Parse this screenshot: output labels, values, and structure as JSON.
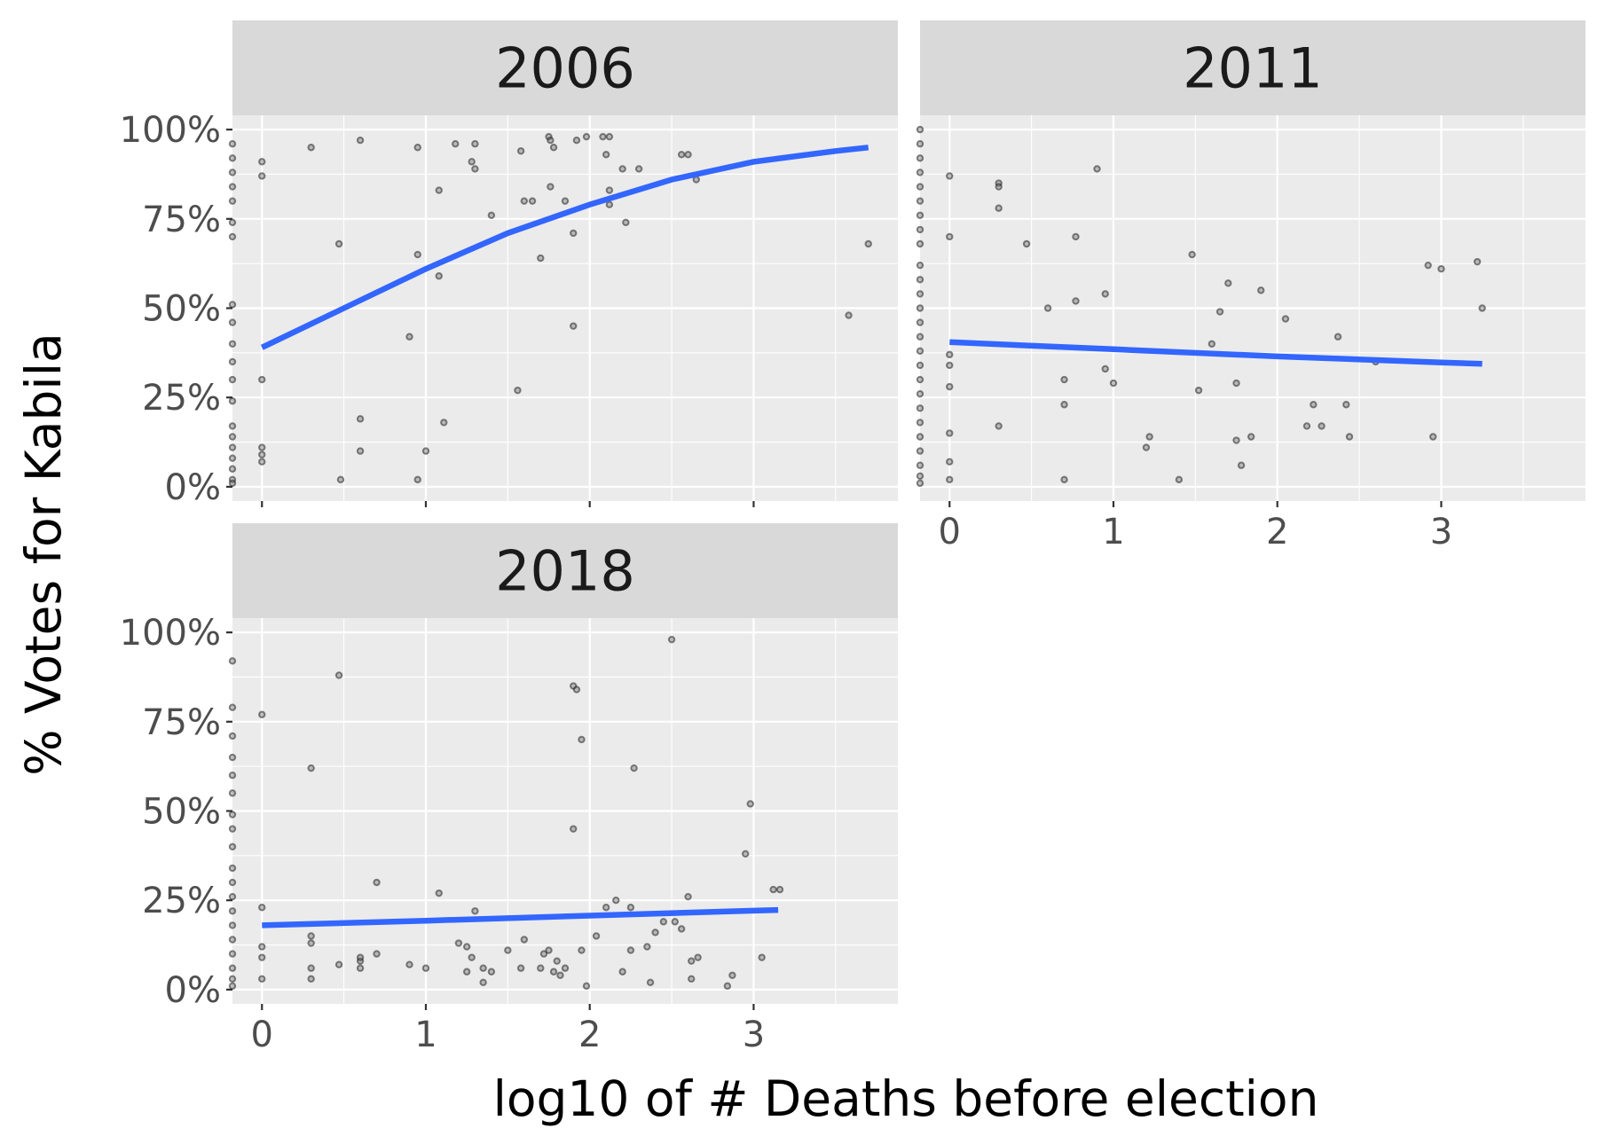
{
  "chart_data": {
    "type": "scatter",
    "facet_layout": "wrap",
    "xlabel": "log10 of # Deaths before election",
    "ylabel": "% Votes for Kabila",
    "xlim": [
      -0.18,
      3.88
    ],
    "ylim": [
      -0.04,
      1.04
    ],
    "x_ticks": [
      "0",
      "1",
      "2",
      "3"
    ],
    "y_ticks": [
      "0%",
      "25%",
      "50%",
      "75%",
      "100%"
    ],
    "grid": true,
    "colors": {
      "panel": "#ebebeb",
      "strip": "#d9d9d9",
      "fit_line": "#3366ff",
      "points": "#333333"
    },
    "panels": [
      {
        "title": "2006",
        "points": [
          [
            -0.18,
            0.96
          ],
          [
            -0.18,
            0.92
          ],
          [
            -0.18,
            0.88
          ],
          [
            -0.18,
            0.84
          ],
          [
            -0.18,
            0.8
          ],
          [
            -0.18,
            0.74
          ],
          [
            -0.18,
            0.7
          ],
          [
            -0.18,
            0.51
          ],
          [
            -0.18,
            0.46
          ],
          [
            -0.18,
            0.4
          ],
          [
            -0.18,
            0.35
          ],
          [
            -0.18,
            0.3
          ],
          [
            -0.18,
            0.24
          ],
          [
            -0.18,
            0.17
          ],
          [
            -0.18,
            0.14
          ],
          [
            -0.18,
            0.11
          ],
          [
            -0.18,
            0.08
          ],
          [
            -0.18,
            0.05
          ],
          [
            -0.18,
            0.02
          ],
          [
            -0.18,
            0.01
          ],
          [
            0,
            0.91
          ],
          [
            0,
            0.87
          ],
          [
            0,
            0.3
          ],
          [
            0,
            0.11
          ],
          [
            0,
            0.09
          ],
          [
            0,
            0.07
          ],
          [
            0.3,
            0.95
          ],
          [
            0.47,
            0.68
          ],
          [
            0.48,
            0.02
          ],
          [
            0.6,
            0.97
          ],
          [
            0.6,
            0.19
          ],
          [
            0.6,
            0.1
          ],
          [
            0.9,
            0.42
          ],
          [
            0.95,
            0.95
          ],
          [
            0.95,
            0.65
          ],
          [
            0.95,
            0.02
          ],
          [
            1,
            0.1
          ],
          [
            1.08,
            0.83
          ],
          [
            1.08,
            0.59
          ],
          [
            1.11,
            0.18
          ],
          [
            1.18,
            0.96
          ],
          [
            1.28,
            0.91
          ],
          [
            1.3,
            0.96
          ],
          [
            1.3,
            0.89
          ],
          [
            1.4,
            0.76
          ],
          [
            1.56,
            0.27
          ],
          [
            1.58,
            0.94
          ],
          [
            1.6,
            0.8
          ],
          [
            1.65,
            0.8
          ],
          [
            1.7,
            0.64
          ],
          [
            1.75,
            0.98
          ],
          [
            1.76,
            0.97
          ],
          [
            1.78,
            0.95
          ],
          [
            1.76,
            0.84
          ],
          [
            1.85,
            0.8
          ],
          [
            1.9,
            0.71
          ],
          [
            1.9,
            0.45
          ],
          [
            1.92,
            0.97
          ],
          [
            1.98,
            0.98
          ],
          [
            2.08,
            0.98
          ],
          [
            2.1,
            0.93
          ],
          [
            2.12,
            0.98
          ],
          [
            2.12,
            0.79
          ],
          [
            2.12,
            0.83
          ],
          [
            2.2,
            0.89
          ],
          [
            2.22,
            0.74
          ],
          [
            2.3,
            0.89
          ],
          [
            2.56,
            0.93
          ],
          [
            2.6,
            0.93
          ],
          [
            2.65,
            0.86
          ],
          [
            3.58,
            0.48
          ],
          [
            3.7,
            0.68
          ]
        ],
        "fit": [
          [
            0,
            0.39
          ],
          [
            0.5,
            0.5
          ],
          [
            1,
            0.61
          ],
          [
            1.5,
            0.71
          ],
          [
            2,
            0.79
          ],
          [
            2.5,
            0.86
          ],
          [
            3,
            0.91
          ],
          [
            3.5,
            0.94
          ],
          [
            3.7,
            0.95
          ]
        ]
      },
      {
        "title": "2011",
        "points": [
          [
            -0.18,
            1
          ],
          [
            -0.18,
            0.96
          ],
          [
            -0.18,
            0.92
          ],
          [
            -0.18,
            0.88
          ],
          [
            -0.18,
            0.84
          ],
          [
            -0.18,
            0.8
          ],
          [
            -0.18,
            0.76
          ],
          [
            -0.18,
            0.72
          ],
          [
            -0.18,
            0.68
          ],
          [
            -0.18,
            0.62
          ],
          [
            -0.18,
            0.58
          ],
          [
            -0.18,
            0.54
          ],
          [
            -0.18,
            0.5
          ],
          [
            -0.18,
            0.46
          ],
          [
            -0.18,
            0.42
          ],
          [
            -0.18,
            0.38
          ],
          [
            -0.18,
            0.34
          ],
          [
            -0.18,
            0.3
          ],
          [
            -0.18,
            0.26
          ],
          [
            -0.18,
            0.22
          ],
          [
            -0.18,
            0.18
          ],
          [
            -0.18,
            0.14
          ],
          [
            -0.18,
            0.1
          ],
          [
            -0.18,
            0.06
          ],
          [
            -0.18,
            0.03
          ],
          [
            -0.18,
            0.01
          ],
          [
            0,
            0.87
          ],
          [
            0,
            0.7
          ],
          [
            0,
            0.37
          ],
          [
            0,
            0.34
          ],
          [
            0,
            0.28
          ],
          [
            0,
            0.15
          ],
          [
            0,
            0.07
          ],
          [
            0,
            0.02
          ],
          [
            0.3,
            0.85
          ],
          [
            0.3,
            0.84
          ],
          [
            0.3,
            0.78
          ],
          [
            0.3,
            0.17
          ],
          [
            0.47,
            0.68
          ],
          [
            0.6,
            0.5
          ],
          [
            0.7,
            0.3
          ],
          [
            0.7,
            0.23
          ],
          [
            0.7,
            0.02
          ],
          [
            0.77,
            0.7
          ],
          [
            0.77,
            0.52
          ],
          [
            0.9,
            0.89
          ],
          [
            0.95,
            0.54
          ],
          [
            0.95,
            0.33
          ],
          [
            1,
            0.29
          ],
          [
            1.2,
            0.11
          ],
          [
            1.22,
            0.14
          ],
          [
            1.4,
            0.02
          ],
          [
            1.48,
            0.65
          ],
          [
            1.52,
            0.27
          ],
          [
            1.6,
            0.4
          ],
          [
            1.65,
            0.49
          ],
          [
            1.7,
            0.57
          ],
          [
            1.75,
            0.29
          ],
          [
            1.75,
            0.13
          ],
          [
            1.78,
            0.06
          ],
          [
            1.84,
            0.14
          ],
          [
            1.9,
            0.55
          ],
          [
            2.05,
            0.47
          ],
          [
            2.18,
            0.17
          ],
          [
            2.22,
            0.23
          ],
          [
            2.27,
            0.17
          ],
          [
            2.37,
            0.42
          ],
          [
            2.42,
            0.23
          ],
          [
            2.44,
            0.14
          ],
          [
            2.6,
            0.35
          ],
          [
            2.92,
            0.62
          ],
          [
            2.95,
            0.14
          ],
          [
            3,
            0.61
          ],
          [
            3.22,
            0.63
          ],
          [
            3.25,
            0.5
          ]
        ],
        "fit": [
          [
            0,
            0.405
          ],
          [
            1,
            0.385
          ],
          [
            2,
            0.365
          ],
          [
            3,
            0.348
          ],
          [
            3.25,
            0.344
          ]
        ]
      },
      {
        "title": "2018",
        "points": [
          [
            -0.18,
            0.92
          ],
          [
            -0.18,
            0.79
          ],
          [
            -0.18,
            0.71
          ],
          [
            -0.18,
            0.65
          ],
          [
            -0.18,
            0.6
          ],
          [
            -0.18,
            0.55
          ],
          [
            -0.18,
            0.49
          ],
          [
            -0.18,
            0.45
          ],
          [
            -0.18,
            0.4
          ],
          [
            -0.18,
            0.34
          ],
          [
            -0.18,
            0.3
          ],
          [
            -0.18,
            0.26
          ],
          [
            -0.18,
            0.22
          ],
          [
            -0.18,
            0.18
          ],
          [
            -0.18,
            0.14
          ],
          [
            -0.18,
            0.1
          ],
          [
            -0.18,
            0.06
          ],
          [
            -0.18,
            0.03
          ],
          [
            -0.18,
            0.01
          ],
          [
            0,
            0.77
          ],
          [
            0,
            0.23
          ],
          [
            0,
            0.12
          ],
          [
            0,
            0.09
          ],
          [
            0,
            0.03
          ],
          [
            0.3,
            0.62
          ],
          [
            0.3,
            0.15
          ],
          [
            0.3,
            0.13
          ],
          [
            0.3,
            0.06
          ],
          [
            0.3,
            0.03
          ],
          [
            0.47,
            0.88
          ],
          [
            0.47,
            0.07
          ],
          [
            0.6,
            0.08
          ],
          [
            0.6,
            0.09
          ],
          [
            0.6,
            0.06
          ],
          [
            0.7,
            0.3
          ],
          [
            0.7,
            0.1
          ],
          [
            0.9,
            0.07
          ],
          [
            1,
            0.06
          ],
          [
            1.08,
            0.27
          ],
          [
            1.2,
            0.13
          ],
          [
            1.25,
            0.12
          ],
          [
            1.25,
            0.05
          ],
          [
            1.28,
            0.09
          ],
          [
            1.3,
            0.22
          ],
          [
            1.35,
            0.06
          ],
          [
            1.35,
            0.02
          ],
          [
            1.4,
            0.05
          ],
          [
            1.5,
            0.11
          ],
          [
            1.58,
            0.06
          ],
          [
            1.6,
            0.14
          ],
          [
            1.7,
            0.06
          ],
          [
            1.72,
            0.1
          ],
          [
            1.75,
            0.11
          ],
          [
            1.78,
            0.05
          ],
          [
            1.8,
            0.08
          ],
          [
            1.82,
            0.04
          ],
          [
            1.85,
            0.06
          ],
          [
            1.9,
            0.85
          ],
          [
            1.92,
            0.84
          ],
          [
            1.95,
            0.7
          ],
          [
            1.9,
            0.45
          ],
          [
            1.95,
            0.11
          ],
          [
            1.98,
            0.01
          ],
          [
            2.04,
            0.15
          ],
          [
            2.1,
            0.23
          ],
          [
            2.16,
            0.25
          ],
          [
            2.2,
            0.05
          ],
          [
            2.25,
            0.23
          ],
          [
            2.25,
            0.11
          ],
          [
            2.27,
            0.62
          ],
          [
            2.35,
            0.12
          ],
          [
            2.37,
            0.02
          ],
          [
            2.4,
            0.16
          ],
          [
            2.45,
            0.19
          ],
          [
            2.5,
            0.98
          ],
          [
            2.52,
            0.19
          ],
          [
            2.56,
            0.17
          ],
          [
            2.6,
            0.26
          ],
          [
            2.62,
            0.08
          ],
          [
            2.62,
            0.03
          ],
          [
            2.66,
            0.09
          ],
          [
            2.84,
            0.01
          ],
          [
            2.87,
            0.04
          ],
          [
            2.95,
            0.38
          ],
          [
            2.98,
            0.52
          ],
          [
            3.05,
            0.09
          ],
          [
            3.12,
            0.28
          ],
          [
            3.16,
            0.28
          ]
        ],
        "fit": [
          [
            0,
            0.18
          ],
          [
            1,
            0.193
          ],
          [
            2,
            0.207
          ],
          [
            3,
            0.221
          ],
          [
            3.15,
            0.223
          ]
        ]
      }
    ]
  }
}
